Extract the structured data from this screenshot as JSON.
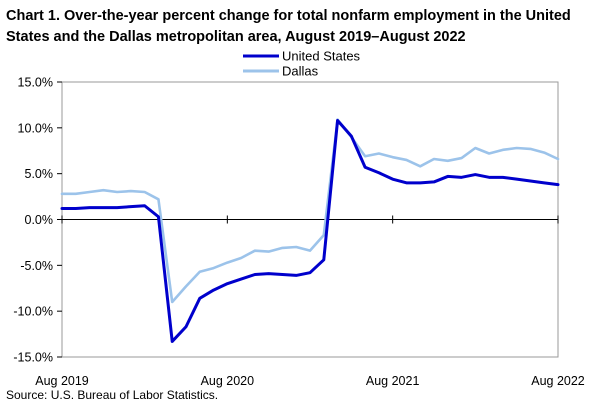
{
  "chart_data": {
    "type": "line",
    "title": "Chart 1. Over-the-year percent change for total nonfarm employment in the United States and the Dallas metropolitan area, August 2019–August 2022",
    "source": "Source: U.S. Bureau of Labor Statistics.",
    "x": [
      "Aug 2019",
      "Sep 2019",
      "Oct 2019",
      "Nov 2019",
      "Dec 2019",
      "Jan 2020",
      "Feb 2020",
      "Mar 2020",
      "Apr 2020",
      "May 2020",
      "Jun 2020",
      "Jul 2020",
      "Aug 2020",
      "Sep 2020",
      "Oct 2020",
      "Nov 2020",
      "Dec 2020",
      "Jan 2021",
      "Feb 2021",
      "Mar 2021",
      "Apr 2021",
      "May 2021",
      "Jun 2021",
      "Jul 2021",
      "Aug 2021",
      "Sep 2021",
      "Oct 2021",
      "Nov 2021",
      "Dec 2021",
      "Jan 2022",
      "Feb 2022",
      "Mar 2022",
      "Apr 2022",
      "May 2022",
      "Jun 2022",
      "Jul 2022",
      "Aug 2022"
    ],
    "x_tick_labels": [
      "Aug 2019",
      "Aug 2020",
      "Aug 2021",
      "Aug 2022"
    ],
    "ylim": [
      -15,
      15
    ],
    "y_ticks": [
      -15,
      -10,
      -5,
      0,
      5,
      10,
      15
    ],
    "y_tick_labels": [
      "-15.0%",
      "-10.0%",
      "-5.0%",
      "0.0%",
      "5.0%",
      "10.0%",
      "15.0%"
    ],
    "legend_position": "top-center",
    "grid": false,
    "series": [
      {
        "name": "United States",
        "color": "#0000cc",
        "values": [
          1.2,
          1.2,
          1.3,
          1.3,
          1.3,
          1.4,
          1.5,
          0.3,
          -13.3,
          -11.7,
          -8.6,
          -7.7,
          -7.0,
          -6.5,
          -6.0,
          -5.9,
          -6.0,
          -6.1,
          -5.8,
          -4.4,
          10.8,
          9.1,
          5.7,
          5.1,
          4.4,
          4.0,
          4.0,
          4.1,
          4.7,
          4.6,
          4.9,
          4.6,
          4.6,
          4.4,
          4.2,
          4.0,
          3.8
        ]
      },
      {
        "name": "Dallas",
        "color": "#9cc3ea",
        "values": [
          2.8,
          2.8,
          3.0,
          3.2,
          3.0,
          3.1,
          3.0,
          2.2,
          -9.0,
          -7.3,
          -5.7,
          -5.3,
          -4.7,
          -4.2,
          -3.4,
          -3.5,
          -3.1,
          -3.0,
          -3.4,
          -1.7,
          10.9,
          9.0,
          6.9,
          7.2,
          6.8,
          6.5,
          5.8,
          6.6,
          6.4,
          6.7,
          7.8,
          7.2,
          7.6,
          7.8,
          7.7,
          7.3,
          6.6
        ]
      }
    ]
  }
}
